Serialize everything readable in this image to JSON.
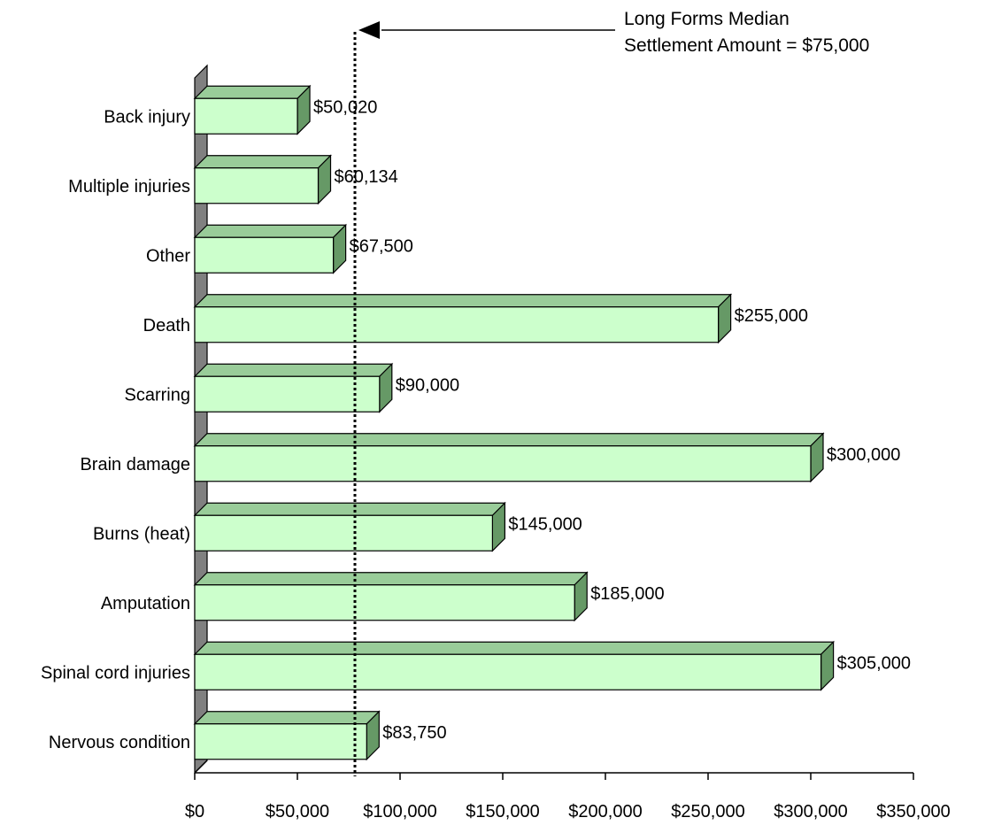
{
  "chart_data": {
    "type": "bar",
    "orientation": "horizontal",
    "style": "3d",
    "categories": [
      "Back injury",
      "Multiple injuries",
      "Other",
      "Death",
      "Scarring",
      "Brain damage",
      "Burns (heat)",
      "Amputation",
      "Spinal cord injuries",
      "Nervous condition"
    ],
    "values": [
      50020,
      60134,
      67500,
      255000,
      90000,
      300000,
      145000,
      185000,
      305000,
      83750
    ],
    "value_labels": [
      "$50,020",
      "$60,134",
      "$67,500",
      "$255,000",
      "$90,000",
      "$300,000",
      "$145,000",
      "$185,000",
      "$305,000",
      "$83,750"
    ],
    "xlim": [
      0,
      350000
    ],
    "x_ticks": [
      0,
      50000,
      100000,
      150000,
      200000,
      250000,
      300000,
      350000
    ],
    "x_tick_labels": [
      "$0",
      "$50,000",
      "$100,000",
      "$150,000",
      "$200,000",
      "$250,000",
      "$300,000",
      "$350,000"
    ],
    "reference_line": {
      "value": 75000,
      "style": "dotted",
      "label_lines": [
        "Long Forms Median",
        "Settlement Amount = $75,000"
      ]
    },
    "grid": false,
    "legend": "none",
    "colors": {
      "bar_front": "#ccffcc",
      "bar_top": "#99cc99",
      "bar_side": "#669966",
      "back_wall": "#808080",
      "outline": "#000000"
    }
  }
}
